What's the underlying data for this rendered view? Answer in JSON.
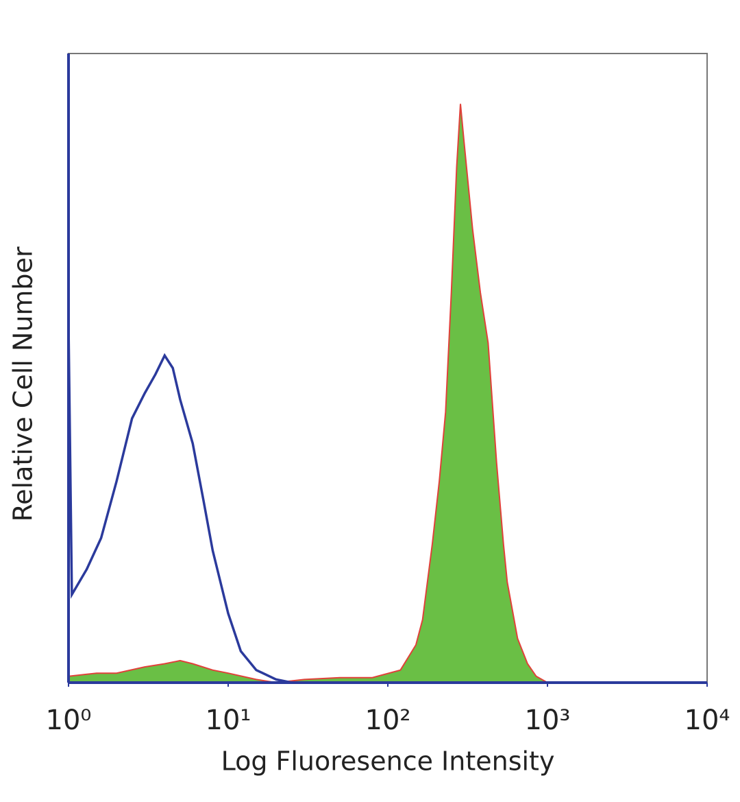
{
  "chart_data": {
    "type": "histogram-overlay",
    "xlabel": "Log Fluoresence Intensity",
    "ylabel": "Relative Cell Number",
    "xscale": "log",
    "xlim": [
      1,
      10000
    ],
    "xticks": [
      {
        "value": 1,
        "label": "10⁰"
      },
      {
        "value": 10,
        "label": "10¹"
      },
      {
        "value": 100,
        "label": "10²"
      },
      {
        "value": 1000,
        "label": "10³"
      },
      {
        "value": 10000,
        "label": "10⁴"
      }
    ],
    "ylim": [
      0,
      100
    ],
    "series": [
      {
        "color": "#2b3a9c",
        "filled": false,
        "x": [
          1,
          1.05,
          1.3,
          1.6,
          2,
          2.5,
          3,
          3.5,
          4,
          4.5,
          5,
          6,
          7,
          8,
          10,
          12,
          15,
          20,
          25
        ],
        "values": [
          57,
          14,
          18,
          23,
          32,
          42,
          46,
          49,
          52,
          50,
          45,
          38,
          29,
          21,
          11,
          5,
          2,
          0.5,
          0
        ]
      },
      {
        "color": "#6abf45",
        "edgecolor": "#e0413a",
        "filled": true,
        "x": [
          1,
          1.5,
          2,
          3,
          4,
          5,
          6,
          8,
          10,
          15,
          20,
          30,
          50,
          80,
          120,
          150,
          165,
          190,
          210,
          230,
          250,
          270,
          285,
          300,
          340,
          380,
          425,
          480,
          530,
          560,
          650,
          750,
          850,
          1000
        ],
        "values": [
          1,
          1.5,
          1.5,
          2.5,
          3,
          3.5,
          3,
          2,
          1.5,
          0.5,
          0,
          0.5,
          0.8,
          0.8,
          2,
          6,
          10,
          22,
          32,
          43,
          62,
          82,
          92,
          86,
          72,
          62,
          54,
          35,
          22,
          16,
          7,
          3,
          1,
          0
        ]
      }
    ]
  }
}
